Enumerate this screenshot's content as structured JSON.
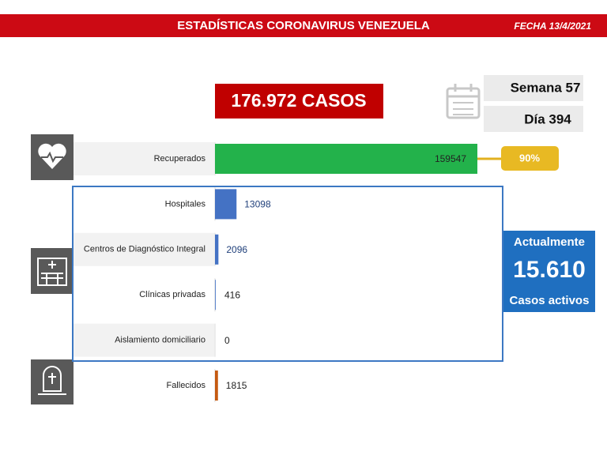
{
  "header": {
    "title": "ESTADÍSTICAS CORONAVIRUS VENEZUELA",
    "date": "FECHA 13/4/2021"
  },
  "summary": {
    "total_cases": "176.972 CASOS",
    "week": "Semana 57",
    "day": "Día 394",
    "recovered_share": "90%",
    "active_label": "Actualmente",
    "active_value": "15.610",
    "active_caption": "Casos activos"
  },
  "chart_data": {
    "type": "bar",
    "categories": [
      "Recuperados",
      "Hospitales",
      "Centros de Diagnóstico Integral",
      "Clínicas privadas",
      "Aislamiento domiciliario",
      "Fallecidos"
    ],
    "values": [
      159547,
      13098,
      2096,
      416,
      0,
      1815
    ],
    "colors": [
      "#23b24b",
      "#4472c4",
      "#4472c4",
      "#4472c4",
      "#4472c4",
      "#c55a11"
    ]
  }
}
